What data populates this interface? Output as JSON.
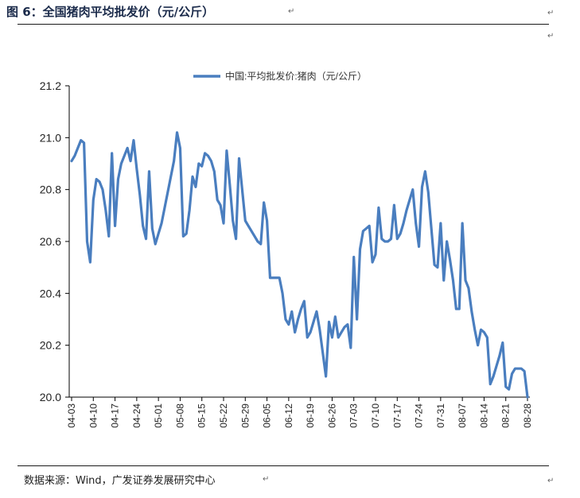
{
  "header": {
    "title": "图 6：全国猪肉平均批发价（元/公斤）",
    "para_mark": "↵"
  },
  "footer": {
    "source": "数据来源：Wind，广发证券发展研究中心"
  },
  "colors": {
    "series": "#4a7ebf",
    "axis": "#000000",
    "rule": "#1a1a1a"
  },
  "chart_data": {
    "type": "line",
    "title": "",
    "xlabel": "",
    "ylabel": "",
    "ylim": [
      20.0,
      21.2
    ],
    "yticks": [
      "20.0",
      "20.2",
      "20.4",
      "20.6",
      "20.8",
      "21.0",
      "21.2"
    ],
    "xticks": [
      "04-03",
      "04-10",
      "04-17",
      "04-24",
      "05-01",
      "05-08",
      "05-15",
      "05-22",
      "05-29",
      "06-05",
      "06-12",
      "06-19",
      "06-26",
      "07-03",
      "07-10",
      "07-17",
      "07-24",
      "07-31",
      "08-07",
      "08-14",
      "08-21",
      "08-28"
    ],
    "grid": false,
    "legend": "top-center",
    "series": [
      {
        "name": "中国:平均批发价:猪肉（元/公斤）",
        "x": [
          "04-03",
          "04-04",
          "04-05",
          "04-06",
          "04-07",
          "04-08",
          "04-09",
          "04-10",
          "04-11",
          "04-12",
          "04-13",
          "04-14",
          "04-15",
          "04-16",
          "04-17",
          "04-18",
          "04-19",
          "04-20",
          "04-21",
          "04-22",
          "04-23",
          "04-24",
          "04-25",
          "04-26",
          "04-27",
          "04-28",
          "04-29",
          "04-30",
          "05-01",
          "05-02",
          "05-03",
          "05-04",
          "05-05",
          "05-06",
          "05-07",
          "05-08",
          "05-09",
          "05-10",
          "05-11",
          "05-12",
          "05-13",
          "05-14",
          "05-15",
          "05-16",
          "05-17",
          "05-18",
          "05-19",
          "05-20",
          "05-21",
          "05-22",
          "05-23",
          "05-24",
          "05-25",
          "05-26",
          "05-27",
          "05-28",
          "05-29",
          "05-30",
          "05-31",
          "06-01",
          "06-02",
          "06-03",
          "06-04",
          "06-05",
          "06-06",
          "06-07",
          "06-08",
          "06-09",
          "06-10",
          "06-11",
          "06-12",
          "06-13",
          "06-14",
          "06-15",
          "06-16",
          "06-17",
          "06-18",
          "06-19",
          "06-20",
          "06-21",
          "06-22",
          "06-23",
          "06-24",
          "06-25",
          "06-26",
          "06-27",
          "06-28",
          "06-29",
          "06-30",
          "07-01",
          "07-02",
          "07-03",
          "07-04",
          "07-05",
          "07-06",
          "07-07",
          "07-08",
          "07-09",
          "07-10",
          "07-11",
          "07-12",
          "07-13",
          "07-14",
          "07-15",
          "07-16",
          "07-17",
          "07-18",
          "07-19",
          "07-20",
          "07-21",
          "07-22",
          "07-23",
          "07-24",
          "07-25",
          "07-26",
          "07-27",
          "07-28",
          "07-29",
          "07-30",
          "07-31",
          "08-01",
          "08-02",
          "08-03",
          "08-04",
          "08-05",
          "08-06",
          "08-07",
          "08-08",
          "08-09",
          "08-10",
          "08-11",
          "08-12",
          "08-13",
          "08-14",
          "08-15",
          "08-16",
          "08-17",
          "08-18",
          "08-19",
          "08-20",
          "08-21",
          "08-22",
          "08-23",
          "08-24",
          "08-25",
          "08-26",
          "08-27",
          "08-28"
        ],
        "values": [
          20.91,
          20.93,
          20.96,
          20.99,
          20.98,
          20.6,
          20.52,
          20.76,
          20.84,
          20.83,
          20.8,
          20.72,
          20.62,
          20.94,
          20.66,
          20.84,
          20.9,
          20.93,
          20.96,
          20.91,
          20.99,
          20.88,
          20.78,
          20.66,
          20.61,
          20.87,
          20.65,
          20.59,
          20.63,
          20.67,
          20.73,
          20.79,
          20.85,
          20.91,
          21.02,
          20.96,
          20.62,
          20.63,
          20.72,
          20.85,
          20.81,
          20.9,
          20.89,
          20.94,
          20.93,
          20.91,
          20.87,
          20.76,
          20.74,
          20.67,
          20.95,
          20.82,
          20.68,
          20.61,
          20.92,
          20.8,
          20.68,
          20.66,
          20.64,
          20.62,
          20.6,
          20.59,
          20.75,
          20.68,
          20.46,
          20.46,
          20.46,
          20.46,
          20.4,
          20.3,
          20.28,
          20.33,
          20.25,
          20.3,
          20.34,
          20.37,
          20.23,
          20.25,
          20.29,
          20.33,
          20.26,
          20.17,
          20.08,
          20.29,
          20.23,
          20.31,
          20.23,
          20.25,
          20.27,
          20.28,
          20.19,
          20.54,
          20.3,
          20.57,
          20.64,
          20.65,
          20.66,
          20.52,
          20.55,
          20.73,
          20.61,
          20.6,
          20.6,
          20.61,
          20.74,
          20.61,
          20.63,
          20.67,
          20.72,
          20.76,
          20.8,
          20.67,
          20.58,
          20.81,
          20.87,
          20.79,
          20.65,
          20.51,
          20.5,
          20.67,
          20.45,
          20.6,
          20.53,
          20.45,
          20.34,
          20.34,
          20.67,
          20.45,
          20.42,
          20.33,
          20.26,
          20.2,
          20.26,
          20.25,
          20.23,
          20.05,
          20.08,
          20.12,
          20.16,
          20.21,
          20.04,
          20.03,
          20.09,
          20.11,
          20.11,
          20.11,
          20.1,
          20.0
        ]
      }
    ]
  }
}
